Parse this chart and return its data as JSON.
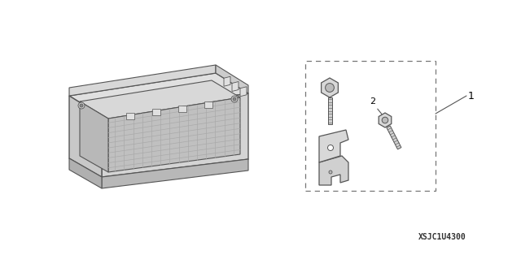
{
  "bg_color": "#ffffff",
  "part_code": "XSJC1U4300",
  "label_1": "1",
  "label_2": "2",
  "fig_width": 6.4,
  "fig_height": 3.19,
  "dpi": 100,
  "line_color": "#555555",
  "face_top": "#e8e8e8",
  "face_front": "#d0d0d0",
  "face_left": "#c0c0c0",
  "face_inner": "#c8c8c8",
  "mesh_color": "#aaaaaa",
  "dash_color": "#777777"
}
